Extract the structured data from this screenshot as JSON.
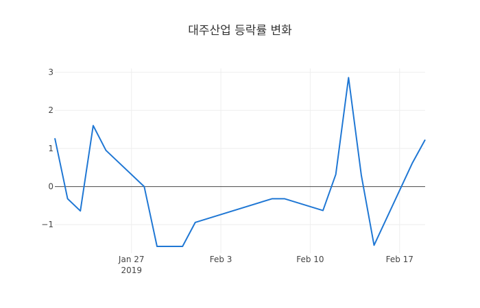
{
  "chart_data": {
    "type": "line",
    "title": "대주산업 등락률 변화",
    "xlabel": "",
    "ylabel": "",
    "xlim": [
      "2019-01-21",
      "2019-02-19"
    ],
    "ylim": [
      -1.75,
      3.1
    ],
    "yticks": [
      -1,
      0,
      1,
      2,
      3
    ],
    "ytick_labels": [
      "−1",
      "0",
      "1",
      "2",
      "3"
    ],
    "xticks": [
      {
        "date": "2019-01-27",
        "label": "Jan 27",
        "sublabel": "2019"
      },
      {
        "date": "2019-02-03",
        "label": "Feb 3",
        "sublabel": ""
      },
      {
        "date": "2019-02-10",
        "label": "Feb 10",
        "sublabel": ""
      },
      {
        "date": "2019-02-17",
        "label": "Feb 17",
        "sublabel": ""
      }
    ],
    "grid": true,
    "series": [
      {
        "x": [
          "2019-01-21",
          "2019-01-22",
          "2019-01-23",
          "2019-01-24",
          "2019-01-25",
          "2019-01-28",
          "2019-01-29",
          "2019-01-30",
          "2019-01-31",
          "2019-02-01",
          "2019-02-07",
          "2019-02-08",
          "2019-02-11",
          "2019-02-12",
          "2019-02-13",
          "2019-02-14",
          "2019-02-15",
          "2019-02-18",
          "2019-02-19"
        ],
        "y": [
          1.27,
          -0.32,
          -0.64,
          1.6,
          0.95,
          0.0,
          -1.57,
          -1.57,
          -1.57,
          -0.94,
          -0.32,
          -0.32,
          -0.63,
          0.32,
          2.86,
          0.3,
          -1.54,
          0.62,
          1.23
        ],
        "color": "#1f77d4"
      }
    ]
  }
}
